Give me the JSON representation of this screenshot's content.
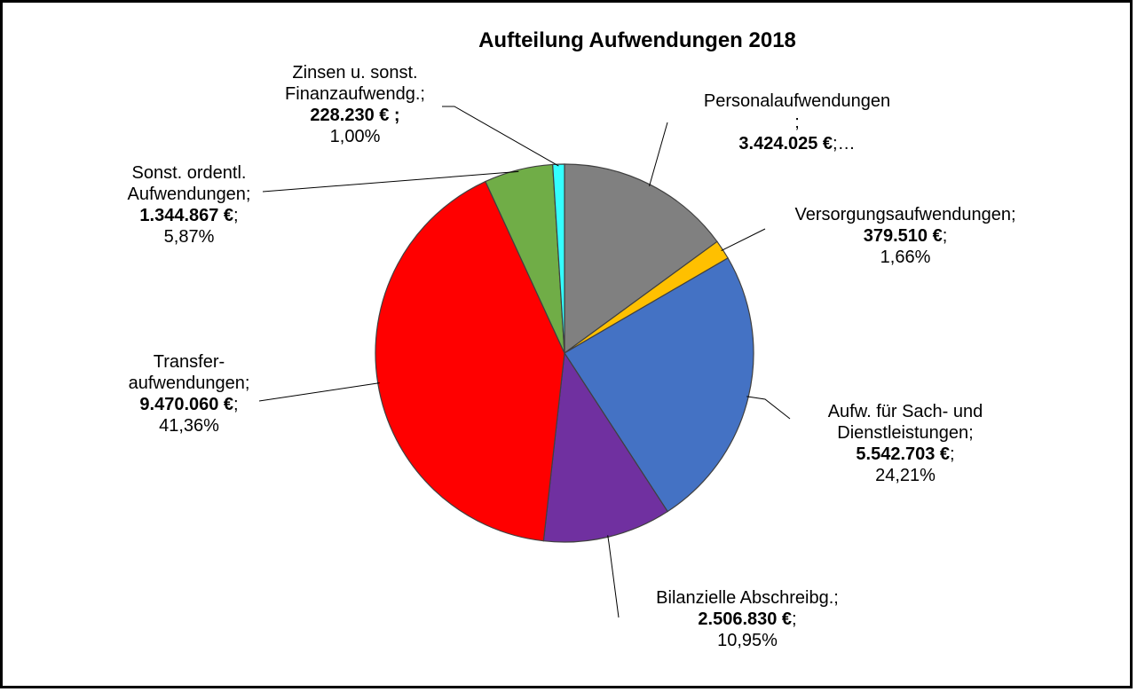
{
  "chart_data": {
    "type": "pie",
    "title": "Aufteilung Aufwendungen 2018",
    "categories": [
      "Personalaufwendungen\n;",
      "Versorgungsaufwendungen;",
      "Aufw. für Sach- und\nDienstleistungen;",
      "Bilanzielle Abschreibg.;",
      "Transfer-\naufwendungen;",
      "Sonst. ordentl.\nAufwendungen;",
      "Zinsen u. sonst.\nFinanzaufwendg.;"
    ],
    "values": [
      3424025,
      379510,
      5542703,
      2506830,
      9470060,
      1344867,
      228230
    ],
    "value_labels": [
      "3.424.025 €",
      "379.510 €",
      "5.542.703 €",
      "2.506.830 €",
      "9.470.060 €",
      "1.344.867 €",
      "228.230 € ;"
    ],
    "value_suffixes": [
      ";…",
      ";",
      ";",
      ";",
      ";",
      ";",
      null
    ],
    "percent_labels": [
      null,
      "1,66%",
      "24,21%",
      "10,95%",
      "41,36%",
      "5,87%",
      "1,00%"
    ],
    "colors": [
      "#808080",
      "#ffc000",
      "#4472c4",
      "#7030a0",
      "#ff0000",
      "#70ad47",
      "#33ffff"
    ]
  }
}
